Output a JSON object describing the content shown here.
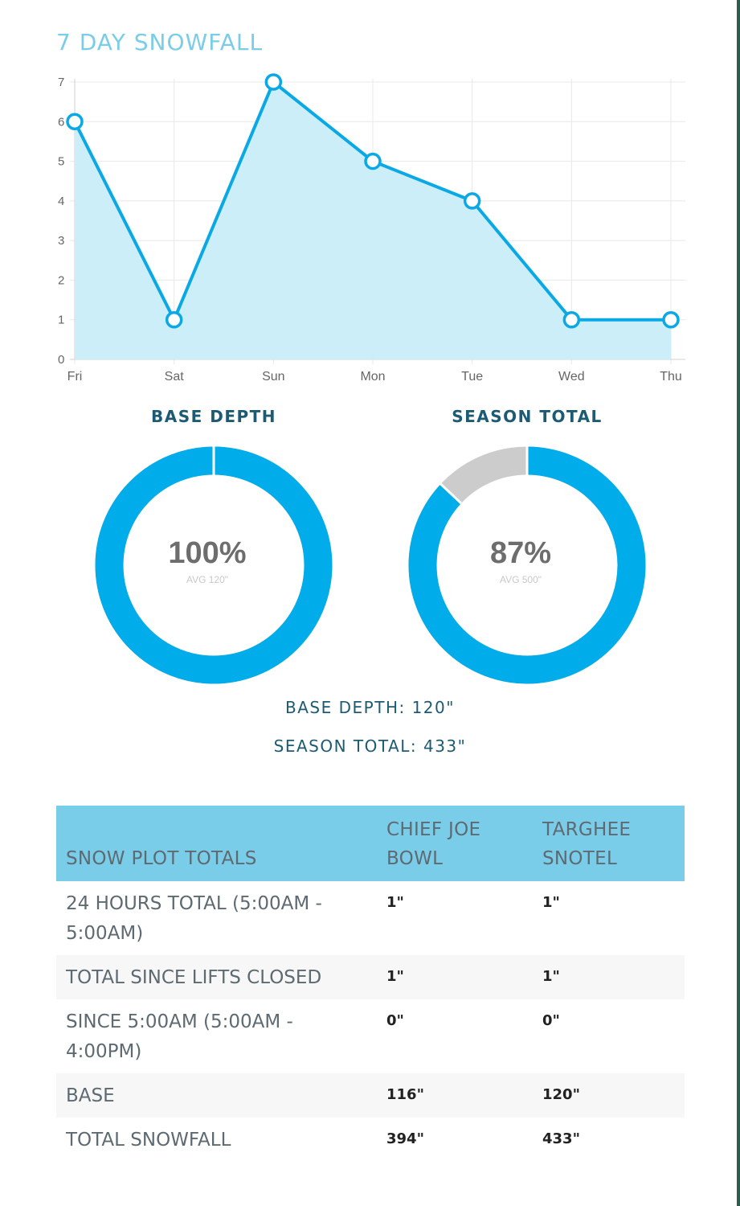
{
  "page": {
    "title": "7 DAY SNOWFALL"
  },
  "chart_data": [
    {
      "type": "area",
      "categories": [
        "Fri",
        "Sat",
        "Sun",
        "Mon",
        "Tue",
        "Wed",
        "Thu"
      ],
      "values": [
        6,
        1,
        7,
        5,
        4,
        1,
        1
      ],
      "yticks": [
        0,
        1,
        2,
        3,
        4,
        5,
        6,
        7
      ],
      "ylim": [
        0,
        7
      ],
      "grid": true,
      "colors": {
        "line": "#0aa9e6",
        "fill": "#cbeef9",
        "grid": "#e8e8e8"
      }
    },
    {
      "type": "pie",
      "variant": "donut",
      "title": "BASE DEPTH",
      "center_value": "100%",
      "center_sub": "AVG 120\"",
      "percent": 100,
      "colors": {
        "filled": "#00acea",
        "remaining": "#cccccc"
      }
    },
    {
      "type": "pie",
      "variant": "donut",
      "title": "SEASON TOTAL",
      "center_value": "87%",
      "center_sub": "AVG 500\"",
      "percent": 87,
      "colors": {
        "filled": "#00acea",
        "remaining": "#cccccc"
      }
    }
  ],
  "summary": {
    "base_depth": "BASE DEPTH: 120\"",
    "season_total": "SEASON TOTAL: 433\""
  },
  "table": {
    "headers": [
      "SNOW PLOT TOTALS",
      "CHIEF JOE BOWL",
      "TARGHEE SNOTEL"
    ],
    "rows": [
      [
        "24 HOURS TOTAL (5:00AM - 5:00AM)",
        "1\"",
        "1\""
      ],
      [
        "TOTAL SINCE LIFTS CLOSED",
        "1\"",
        "1\""
      ],
      [
        "SINCE 5:00AM (5:00AM - 4:00PM)",
        "0\"",
        "0\""
      ],
      [
        "BASE",
        "116\"",
        "120\""
      ],
      [
        "TOTAL SNOWFALL",
        "394\"",
        "433\""
      ]
    ]
  }
}
